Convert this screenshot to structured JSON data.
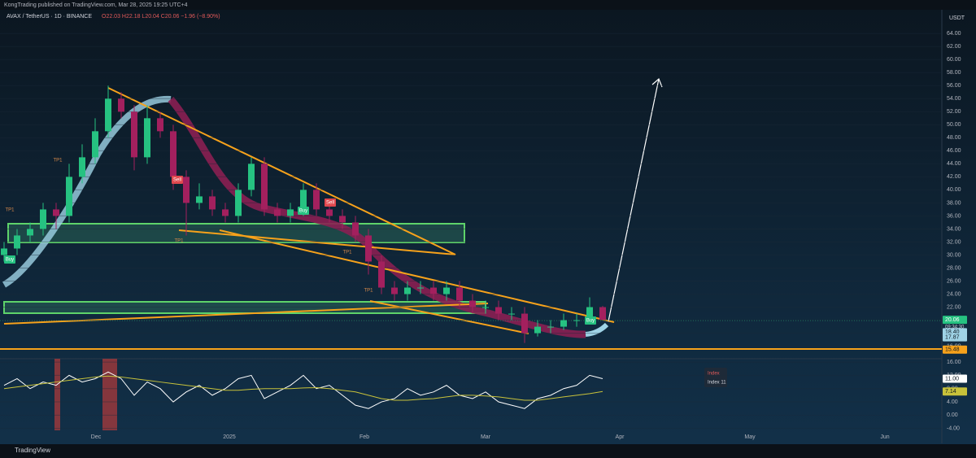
{
  "header": {
    "publisher": "KongTrading published on TradingView.com, Mar 28, 2025 19:25 UTC+4",
    "symbol": "AVAX / TetherUS · 1D · BINANCE",
    "ohlc_text": "O22.03 H22.18 L20.04 C20.06 −1.96 (−8.90%)",
    "currency": "USDT",
    "brand": "TradingView"
  },
  "chart_data": [
    {
      "type": "candlestick",
      "title": "AVAX / TetherUS",
      "up_color": "#26c281",
      "down_color": "#a3205e",
      "open": [
        30,
        31,
        33,
        34,
        37,
        36,
        42,
        45,
        49,
        54,
        52,
        45,
        51,
        49,
        42,
        38,
        39,
        37,
        36,
        40,
        44,
        37,
        36,
        37,
        40,
        37,
        36,
        35,
        33,
        29,
        25,
        24,
        25,
        25,
        24,
        25,
        23,
        22,
        22,
        21,
        21,
        18,
        19,
        19,
        20,
        20,
        22
      ],
      "high": [
        32,
        34,
        35,
        38,
        38,
        44,
        47,
        51,
        56,
        55,
        53,
        53,
        52,
        50,
        43,
        41,
        40,
        38,
        41,
        45,
        45,
        38,
        38,
        41,
        41,
        38,
        37,
        36,
        34,
        30,
        26,
        26,
        26,
        26,
        26,
        26,
        24,
        23,
        23,
        22,
        22,
        20,
        20,
        21,
        21,
        23.5,
        22.18
      ],
      "low": [
        29,
        30,
        32,
        33,
        34,
        35,
        41,
        44,
        48,
        51,
        43,
        44,
        48,
        40,
        33,
        37,
        36,
        35,
        35,
        39,
        36,
        35,
        35,
        36,
        36,
        35,
        34,
        32,
        27,
        24,
        23,
        23,
        24,
        23,
        23,
        22,
        21,
        21,
        20,
        20,
        16.5,
        17.5,
        18,
        18.5,
        19,
        19.5,
        20.04
      ],
      "close": [
        31,
        33,
        34,
        37,
        36,
        42,
        45,
        49,
        54,
        52,
        45,
        51,
        49,
        42,
        38,
        39,
        37,
        36,
        40,
        44,
        37,
        36,
        37,
        40,
        37,
        36,
        35,
        33,
        29,
        25,
        24,
        25,
        25,
        24,
        25,
        23,
        22,
        22,
        21,
        21,
        18,
        19,
        19,
        20,
        20,
        22,
        20.06
      ],
      "ylim": [
        14.2,
        67.4
      ],
      "yticks": [
        {
          "value": 16,
          "label": "16.00"
        },
        {
          "value": 18,
          "label": "18.00"
        },
        {
          "value": 20,
          "label": "20.00"
        },
        {
          "value": 22,
          "label": "22.00"
        },
        {
          "value": 24,
          "label": "24.00"
        },
        {
          "value": 26,
          "label": "26.00"
        },
        {
          "value": 28,
          "label": "28.00"
        },
        {
          "value": 30,
          "label": "30.00"
        },
        {
          "value": 32,
          "label": "32.00"
        },
        {
          "value": 34,
          "label": "34.00"
        },
        {
          "value": 36,
          "label": "36.00"
        },
        {
          "value": 38,
          "label": "38.00"
        },
        {
          "value": 40,
          "label": "40.00"
        },
        {
          "value": 42,
          "label": "42.00"
        },
        {
          "value": 44,
          "label": "44.00"
        },
        {
          "value": 46,
          "label": "46.00"
        },
        {
          "value": 48,
          "label": "48.00"
        },
        {
          "value": 50,
          "label": "50.00"
        },
        {
          "value": 52,
          "label": "52.00"
        },
        {
          "value": 54,
          "label": "54.00"
        },
        {
          "value": 56,
          "label": "56.00"
        },
        {
          "value": 58,
          "label": "58.00"
        },
        {
          "value": 60,
          "label": "60.00"
        },
        {
          "value": 62,
          "label": "62.00"
        },
        {
          "value": 64,
          "label": "64.00"
        }
      ],
      "price_tags": [
        20.06,
        {
          "value": 18.4,
          "label": "18.40"
        },
        {
          "value": 17.87,
          "label": "17.87"
        },
        {
          "value": 15.48,
          "label": "15.48"
        }
      ],
      "countdown": "09:34:30",
      "annotations": [
        "TP1",
        "Buy",
        "TP1",
        "Sell",
        "TP1",
        "Buy",
        "Sell",
        "TP1",
        "TP1",
        "Buy"
      ],
      "x_labels": [
        "Dec",
        "2025",
        "Feb",
        "Mar",
        "Apr",
        "May",
        "Jun"
      ]
    },
    {
      "type": "line",
      "title": "Index",
      "series": [
        {
          "name": "Index",
          "color": "#ffffff",
          "values": [
            9,
            11,
            8,
            10,
            9,
            12,
            10,
            11,
            13,
            11,
            6,
            10,
            8,
            4,
            7,
            9,
            6,
            8,
            11,
            12,
            5,
            7,
            9,
            12,
            8,
            9,
            6,
            3,
            2,
            4,
            5,
            8,
            6,
            7,
            9,
            6,
            5,
            7,
            4,
            3,
            2,
            5,
            6,
            8,
            9,
            12,
            11
          ]
        },
        {
          "name": "Index 11",
          "color": "#c8c23a",
          "values": [
            8,
            8.5,
            9,
            9.5,
            10,
            10.5,
            11,
            11.5,
            11.8,
            11.5,
            11,
            10.5,
            10,
            9.5,
            9,
            8.5,
            8,
            7.5,
            7.5,
            7.8,
            8,
            8,
            8,
            8.2,
            8.3,
            8,
            7.5,
            7,
            6,
            5,
            4.5,
            4.5,
            4.8,
            5,
            5.5,
            6,
            6,
            5.8,
            5.5,
            5,
            4.5,
            4.5,
            5,
            5.5,
            6,
            6.5,
            7.14
          ]
        }
      ],
      "ylim": [
        -8,
        17
      ],
      "yticks": [
        {
          "value": -4,
          "label": "-4.00"
        },
        {
          "value": 0,
          "label": "0.00"
        },
        {
          "value": 4,
          "label": "4.00"
        },
        {
          "value": 8,
          "label": "8.00"
        },
        {
          "value": 12,
          "label": "12.00"
        },
        {
          "value": 16,
          "label": "16.00"
        }
      ],
      "value_tags": [
        {
          "value": 11,
          "label": "11.00"
        },
        7.14
      ]
    }
  ]
}
